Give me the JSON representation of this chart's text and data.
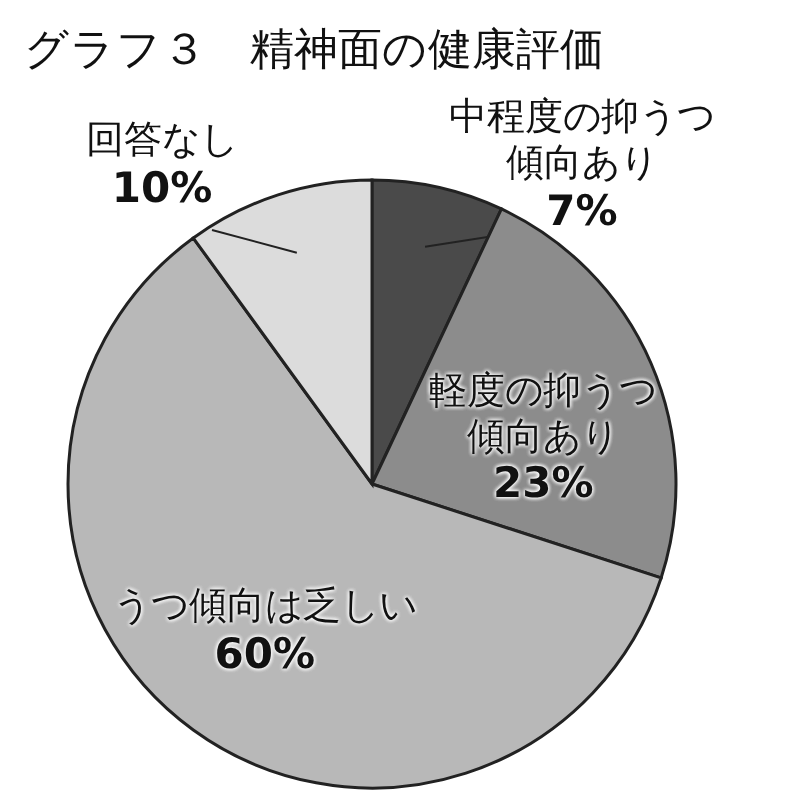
{
  "chart_data": {
    "type": "pie",
    "title": "グラフ３　精神面の健康評価",
    "categories": [
      "中程度の抑うつ傾向あり",
      "軽度の抑うつ傾向あり",
      "うつ傾向は乏しい",
      "回答なし"
    ],
    "values": [
      7,
      23,
      60,
      10
    ],
    "value_labels": [
      "7%",
      "23%",
      "60%",
      "10%"
    ],
    "colors": [
      "#4a4a4a",
      "#8c8c8c",
      "#b8b8b8",
      "#dcdcdc"
    ],
    "legend": false
  }
}
